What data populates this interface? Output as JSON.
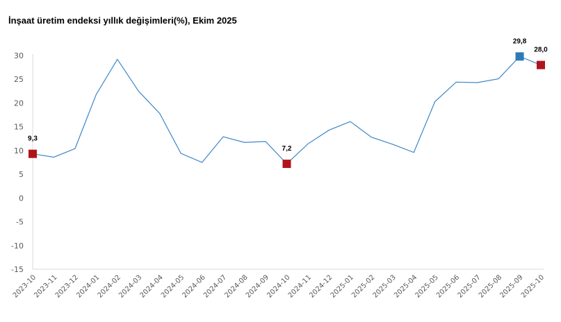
{
  "chart_data": {
    "type": "line",
    "title": "İnşaat üretim endeksi yıllık değişimleri(%), Ekim 2025",
    "xlabel": "",
    "ylabel": "",
    "ylim": [
      -15,
      30
    ],
    "yticks": [
      30,
      25,
      20,
      15,
      10,
      5,
      0,
      -5,
      -10,
      -15
    ],
    "grid": false,
    "line_color": "#3a87c8",
    "categories": [
      "2023-10",
      "2023-11",
      "2023-12",
      "2024-01",
      "2024-02",
      "2024-03",
      "2024-04",
      "2024-05",
      "2024-06",
      "2024-07",
      "2024-08",
      "2024-09",
      "2024-10",
      "2024-11",
      "2024-12",
      "2025-01",
      "2025-02",
      "2025-03",
      "2025-04",
      "2025-05",
      "2025-06",
      "2025-07",
      "2025-08",
      "2025-09",
      "2025-10"
    ],
    "values": [
      9.3,
      8.6,
      10.4,
      21.8,
      29.2,
      22.5,
      17.8,
      9.4,
      7.5,
      12.9,
      11.7,
      11.9,
      7.2,
      11.4,
      14.3,
      16.1,
      12.8,
      11.3,
      9.6,
      20.3,
      24.4,
      24.3,
      25.1,
      29.8,
      28.0
    ],
    "highlights": [
      {
        "index": 0,
        "label": "9,3",
        "color": "#b0141b"
      },
      {
        "index": 12,
        "label": "7,2",
        "color": "#b0141b"
      },
      {
        "index": 23,
        "label": "29,8",
        "color": "#2e7ab8"
      },
      {
        "index": 24,
        "label": "28,0",
        "color": "#b0141b"
      }
    ]
  }
}
